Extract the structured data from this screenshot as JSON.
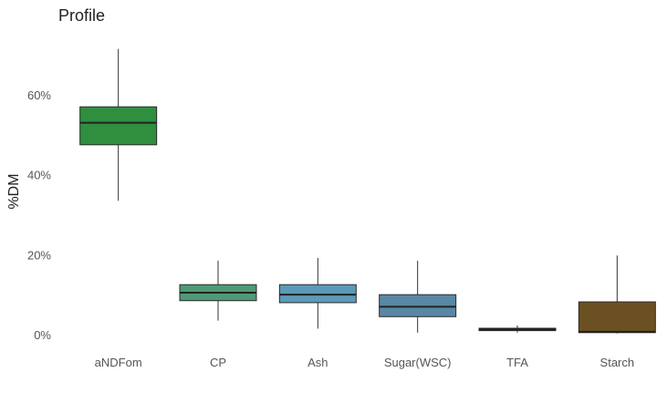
{
  "chart_data": {
    "type": "box",
    "title": "Profile",
    "xlabel": "",
    "ylabel": "%DM",
    "ylim": [
      -2,
      75
    ],
    "y_ticks": [
      0,
      20,
      40,
      60
    ],
    "y_tick_labels": [
      "0%",
      "20%",
      "40%",
      "60%"
    ],
    "grid": false,
    "legend": "none",
    "categories": [
      "aNDFom",
      "CP",
      "Ash",
      "Sugar(WSC)",
      "TFA",
      "Starch"
    ],
    "boxes": [
      {
        "category": "aNDFom",
        "whisker_low": 33.5,
        "q1": 47.5,
        "median": 53.0,
        "q3": 57.0,
        "whisker_high": 71.5,
        "color": "#2f8f3f"
      },
      {
        "category": "CP",
        "whisker_low": 3.5,
        "q1": 8.5,
        "median": 10.5,
        "q3": 12.5,
        "whisker_high": 18.5,
        "color": "#4e9a77"
      },
      {
        "category": "Ash",
        "whisker_low": 1.5,
        "q1": 8.0,
        "median": 10.0,
        "q3": 12.5,
        "whisker_high": 19.2,
        "color": "#5b9ab8"
      },
      {
        "category": "Sugar(WSC)",
        "whisker_low": 0.5,
        "q1": 4.5,
        "median": 7.0,
        "q3": 10.0,
        "whisker_high": 18.5,
        "color": "#5888a5"
      },
      {
        "category": "TFA",
        "whisker_low": 0.5,
        "q1": 1.0,
        "median": 1.3,
        "q3": 1.6,
        "whisker_high": 2.3,
        "color": "#3a5f82"
      },
      {
        "category": "Starch",
        "whisker_low": 0.3,
        "q1": 0.5,
        "median": 0.7,
        "q3": 8.2,
        "whisker_high": 19.8,
        "color": "#6b5022"
      }
    ]
  }
}
